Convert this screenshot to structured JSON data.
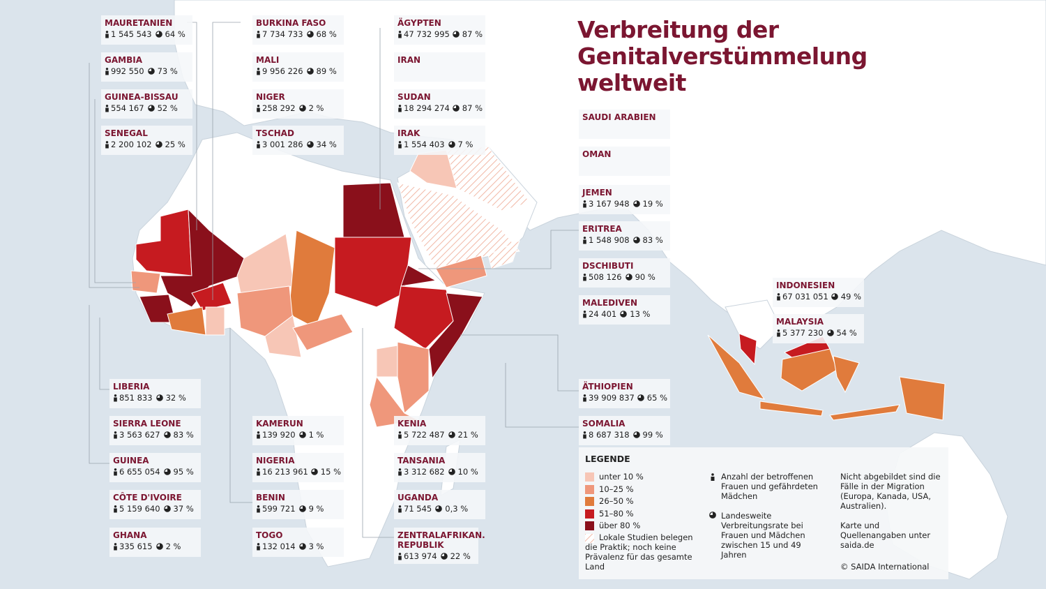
{
  "title": [
    "Verbreitung der",
    "Genitalverstümmelung",
    "weltweit"
  ],
  "cards": [
    {
      "name": "MAURETANIEN",
      "count": "1 545 543",
      "rate": "64 %"
    },
    {
      "name": "GAMBIA",
      "count": "992 550",
      "rate": "73 %"
    },
    {
      "name": "GUINEA-BISSAU",
      "count": "554 167",
      "rate": "52 %"
    },
    {
      "name": "SENEGAL",
      "count": "2 200 102",
      "rate": "25 %"
    },
    {
      "name": "BURKINA FASO",
      "count": "7 734 733",
      "rate": "68 %"
    },
    {
      "name": "MALI",
      "count": "9 956 226",
      "rate": "89 %"
    },
    {
      "name": "NIGER",
      "count": "258 292",
      "rate": "2 %"
    },
    {
      "name": "TSCHAD",
      "count": "3 001 286",
      "rate": "34 %"
    },
    {
      "name": "ÄGYPTEN",
      "count": "47 732 995",
      "rate": "87 %"
    },
    {
      "name": "IRAN"
    },
    {
      "name": "SUDAN",
      "count": "18 294 274",
      "rate": "87 %"
    },
    {
      "name": "IRAK",
      "count": "1 554 403",
      "rate": "7 %"
    },
    {
      "name": "SAUDI ARABIEN"
    },
    {
      "name": "OMAN"
    },
    {
      "name": "JEMEN",
      "count": "3 167 948",
      "rate": "19 %"
    },
    {
      "name": "ERITREA",
      "count": "1 548 908",
      "rate": "83 %"
    },
    {
      "name": "DSCHIBUTI",
      "count": "508 126",
      "rate": "90 %"
    },
    {
      "name": "MALEDIVEN",
      "count": "24 401",
      "rate": "13 %"
    },
    {
      "name": "LIBERIA",
      "count": "851 833",
      "rate": "32 %"
    },
    {
      "name": "SIERRA LEONE",
      "count": "3 563 627",
      "rate": "83 %"
    },
    {
      "name": "GUINEA",
      "count": "6 655 054",
      "rate": "95 %"
    },
    {
      "name": "CÔTE D'IVOIRE",
      "count": "5 159 640",
      "rate": "37 %"
    },
    {
      "name": "GHANA",
      "count": "335 615",
      "rate": "2 %"
    },
    {
      "name": "KAMERUN",
      "count": "139 920",
      "rate": "1 %"
    },
    {
      "name": "NIGERIA",
      "count": "16 213 961",
      "rate": "15 %"
    },
    {
      "name": "BENIN",
      "count": "599 721",
      "rate": "9 %"
    },
    {
      "name": "TOGO",
      "count": "132 014",
      "rate": "3 %"
    },
    {
      "name": "KENIA",
      "count": "5 722 487",
      "rate": "21 %"
    },
    {
      "name": "TANSANIA",
      "count": "3 312 682",
      "rate": "10 %"
    },
    {
      "name": "UGANDA",
      "count": "71 545",
      "rate": "0,3 %"
    },
    {
      "name": "ZENTRALAFRIKAN. REPUBLIK",
      "count": "613 974",
      "rate": "22 %"
    },
    {
      "name": "ÄTHIOPIEN",
      "count": "39 909 837",
      "rate": "65 %"
    },
    {
      "name": "SOMALIA",
      "count": "8 687 318",
      "rate": "99 %"
    },
    {
      "name": "INDONESIEN",
      "count": "67 031 051",
      "rate": "49 %"
    },
    {
      "name": "MALAYSIA",
      "count": "5 377 230",
      "rate": "54 %"
    }
  ],
  "legend": {
    "title": "LEGENDE",
    "items": [
      {
        "label": "unter 10 %",
        "color": "#f7c6b6"
      },
      {
        "label": "10–25 %",
        "color": "#ef977b"
      },
      {
        "label": "26–50 %",
        "color": "#e07b3c"
      },
      {
        "label": "51–80 %",
        "color": "#c61b20"
      },
      {
        "label": "über 80 %",
        "color": "#8a101b"
      }
    ],
    "hatched": "Lokale Studien belegen die Praktik; noch keine Prävalenz für das gesamte Land",
    "count_note": "Anzahl der betroffenen Frauen und gefährdeten Mädchen",
    "rate_note": "Landesweite Verbreitungsrate bei Frauen und Mädchen zwischen 15 und 49 Jahren",
    "migration_note": "Nicht abgebildet sind die Fälle in der Migration (Europa, Kanada, USA, Australien).",
    "source_note": "Karte und Quellenangaben unter saida.de",
    "copyright": "© SAIDA International"
  }
}
